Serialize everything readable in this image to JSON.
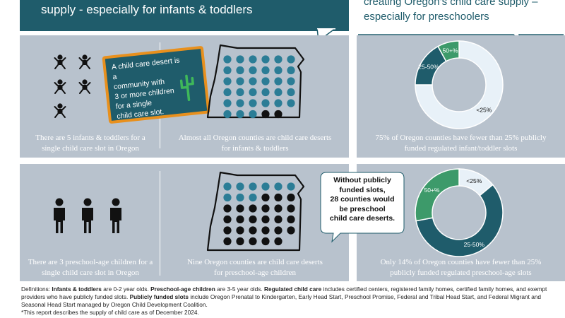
{
  "header": {
    "left_title": "supply - especially for infants & toddlers",
    "right_title_line1": "creating Oregon’s child care supply –",
    "right_title_line2": "especially for preschoolers"
  },
  "callout_desert": {
    "lines": [
      "A child care desert is a",
      "community with",
      "3 or more children",
      "for a single",
      "child care slot."
    ]
  },
  "callout_preschool": {
    "lines": [
      "Without publicly",
      "funded slots,",
      "28 counties would",
      "be preschool",
      "child care deserts."
    ]
  },
  "captions": {
    "infant_ratio": [
      "There are 5 infants & toddlers for a",
      "single child care slot in Oregon"
    ],
    "infant_deserts": [
      "Almost all Oregon counties are child care deserts",
      "for infants & toddlers"
    ],
    "infant_funded": [
      "75% of Oregon counties have fewer than 25% publicly",
      "funded regulated infant/toddler slots"
    ],
    "preschool_ratio": [
      "There are 3 preschool-age children for a",
      "single child care slot in Oregon"
    ],
    "preschool_deserts": [
      "Nine Oregon counties are child care deserts",
      "for preschool-age children"
    ],
    "preschool_funded": [
      "Only 14% of Oregon counties have fewer than 25%",
      "publicly funded regulated preschool-age slots"
    ]
  },
  "definitions": {
    "line1_pre": "Definitions: ",
    "infants_term": "Infants & toddlers",
    "infants_def": " are 0-2 year olds. ",
    "preschool_term": "Preschool-age children",
    "preschool_def": " are 3-5 year olds. ",
    "regulated_term": "Regulated child care",
    "regulated_def": " includes certified centers, registered family homes, certified family homes, and exempt providers who have publicly funded slots. ",
    "funded_term": "Publicly funded slots",
    "funded_def": " include Oregon Prenatal to Kindergarten, Early Head Start, Preschool Promise, Federal and Tribal Head Start, and Federal Migrant and Seasonal Head Start managed by Oregon Child Development Coalition.",
    "footnote": "*This report describes the supply of child care as of December 2024."
  },
  "colors": {
    "teal_dark": "#1f5c6b",
    "dot_teal": "#2b7d96",
    "dot_black": "#111111",
    "panel": "#b8c2cd",
    "pale": "#e8f1f8",
    "green": "#3d9a6a",
    "orange": "#e8901d"
  },
  "chart_data": [
    {
      "type": "pie",
      "variant": "donut",
      "caption": "75% of Oregon counties have fewer than 25% publicly funded regulated infant/toddler slots",
      "slices": [
        {
          "label": "<25%",
          "value": 75,
          "color": "#e8f1f8"
        },
        {
          "label": "25-50%",
          "value": 17,
          "color": "#1f5c6b"
        },
        {
          "label": "50+%",
          "value": 8,
          "color": "#3d9a6a"
        }
      ]
    },
    {
      "type": "pie",
      "variant": "donut",
      "caption": "Only 14% of Oregon counties have fewer than 25% publicly funded regulated preschool-age slots",
      "slices": [
        {
          "label": "<25%",
          "value": 14,
          "color": "#e8f1f8"
        },
        {
          "label": "25-50%",
          "value": 58,
          "color": "#1f5c6b"
        },
        {
          "label": "50+%",
          "value": 28,
          "color": "#3d9a6a"
        }
      ]
    },
    {
      "type": "table",
      "variant": "dot-grid",
      "caption": "Almost all Oregon counties are child care deserts for infants & toddlers",
      "rows": [
        [
          "desert",
          "desert",
          "desert",
          "desert",
          "desert",
          "desert"
        ],
        [
          "desert",
          "desert",
          "desert",
          "desert",
          "desert",
          "desert"
        ],
        [
          "desert",
          "desert",
          "desert",
          "desert",
          "desert",
          "desert"
        ],
        [
          "desert",
          "desert",
          "desert",
          "desert",
          "desert",
          "desert"
        ],
        [
          "desert",
          "desert",
          "desert",
          "desert",
          "desert",
          "desert"
        ],
        [
          "desert",
          "desert",
          "desert",
          "not-desert",
          "not-desert",
          ""
        ]
      ]
    },
    {
      "type": "table",
      "variant": "dot-grid",
      "caption": "Nine Oregon counties are child care deserts for preschool-age children",
      "rows": [
        [
          "desert",
          "desert",
          "desert",
          "desert",
          "desert",
          "desert"
        ],
        [
          "desert",
          "desert",
          "desert",
          "not-desert",
          "not-desert",
          "not-desert"
        ],
        [
          "not-desert",
          "not-desert",
          "not-desert",
          "not-desert",
          "not-desert",
          "not-desert"
        ],
        [
          "not-desert",
          "not-desert",
          "not-desert",
          "not-desert",
          "not-desert",
          "not-desert"
        ],
        [
          "not-desert",
          "not-desert",
          "not-desert",
          "not-desert",
          "not-desert",
          "not-desert"
        ],
        [
          "not-desert",
          "not-desert",
          "not-desert",
          "not-desert",
          "not-desert",
          ""
        ]
      ]
    }
  ]
}
